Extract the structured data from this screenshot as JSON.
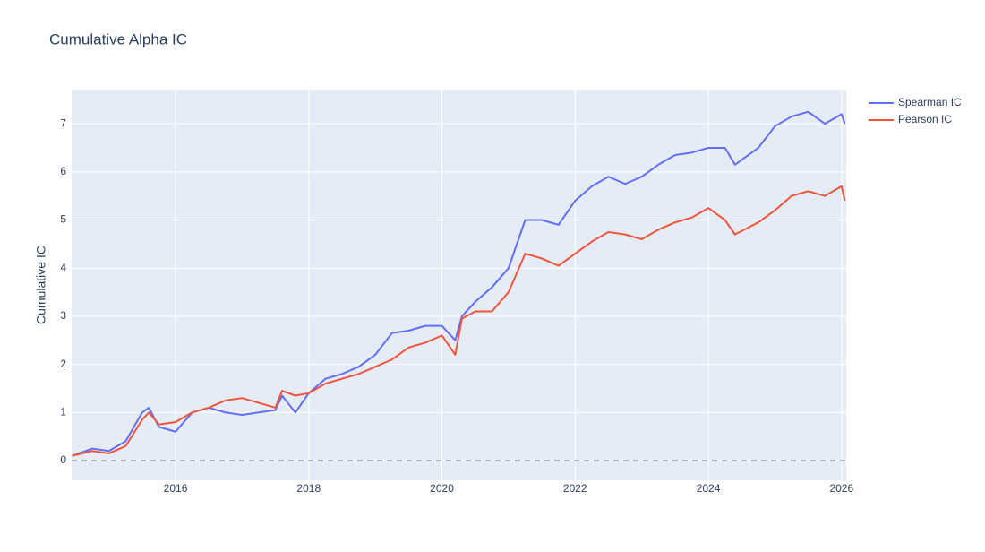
{
  "chart_data": {
    "type": "line",
    "title": "Cumulative Alpha IC",
    "y_label": "Cumulative IC",
    "x": [
      2014.45,
      2014.75,
      2015.0,
      2015.25,
      2015.5,
      2015.6,
      2015.75,
      2016.0,
      2016.25,
      2016.5,
      2016.75,
      2017.0,
      2017.25,
      2017.5,
      2017.6,
      2017.8,
      2018.0,
      2018.25,
      2018.5,
      2018.75,
      2019.0,
      2019.25,
      2019.5,
      2019.75,
      2020.0,
      2020.2,
      2020.3,
      2020.5,
      2020.75,
      2021.0,
      2021.25,
      2021.5,
      2021.75,
      2022.0,
      2022.25,
      2022.5,
      2022.75,
      2023.0,
      2023.25,
      2023.5,
      2023.75,
      2024.0,
      2024.25,
      2024.4,
      2024.75,
      2025.0,
      2025.25,
      2025.5,
      2025.75,
      2026.0,
      2026.05
    ],
    "series": [
      {
        "name": "Spearman IC",
        "color": "#636efa",
        "values": [
          0.1,
          0.25,
          0.2,
          0.4,
          1.0,
          1.1,
          0.7,
          0.6,
          1.0,
          1.1,
          1.0,
          0.95,
          1.0,
          1.05,
          1.35,
          1.0,
          1.4,
          1.7,
          1.8,
          1.95,
          2.2,
          2.65,
          2.7,
          2.8,
          2.8,
          2.5,
          3.0,
          3.3,
          3.6,
          4.0,
          5.0,
          5.0,
          4.9,
          5.4,
          5.7,
          5.9,
          5.75,
          5.9,
          6.15,
          6.35,
          6.4,
          6.5,
          6.5,
          6.15,
          6.5,
          6.95,
          7.15,
          7.25,
          7.0,
          7.2,
          7.0
        ]
      },
      {
        "name": "Pearson IC",
        "color": "#ef553b",
        "values": [
          0.1,
          0.2,
          0.15,
          0.3,
          0.85,
          1.0,
          0.75,
          0.8,
          1.0,
          1.1,
          1.25,
          1.3,
          1.2,
          1.1,
          1.45,
          1.35,
          1.4,
          1.6,
          1.7,
          1.8,
          1.95,
          2.1,
          2.35,
          2.45,
          2.6,
          2.2,
          2.95,
          3.1,
          3.1,
          3.5,
          4.3,
          4.2,
          4.05,
          4.3,
          4.55,
          4.75,
          4.7,
          4.6,
          4.8,
          4.95,
          5.05,
          5.25,
          5.0,
          4.7,
          4.95,
          5.2,
          5.5,
          5.6,
          5.5,
          5.7,
          5.4
        ]
      }
    ],
    "xlim": [
      2014.44,
      2026.07
    ],
    "xticks": [
      2016,
      2018,
      2020,
      2022,
      2024,
      2026
    ],
    "ylim": [
      -0.41,
      7.71
    ],
    "yticks": [
      0,
      1,
      2,
      3,
      4,
      5,
      6,
      7
    ],
    "hline": 0,
    "grid": true,
    "legend": "right"
  }
}
